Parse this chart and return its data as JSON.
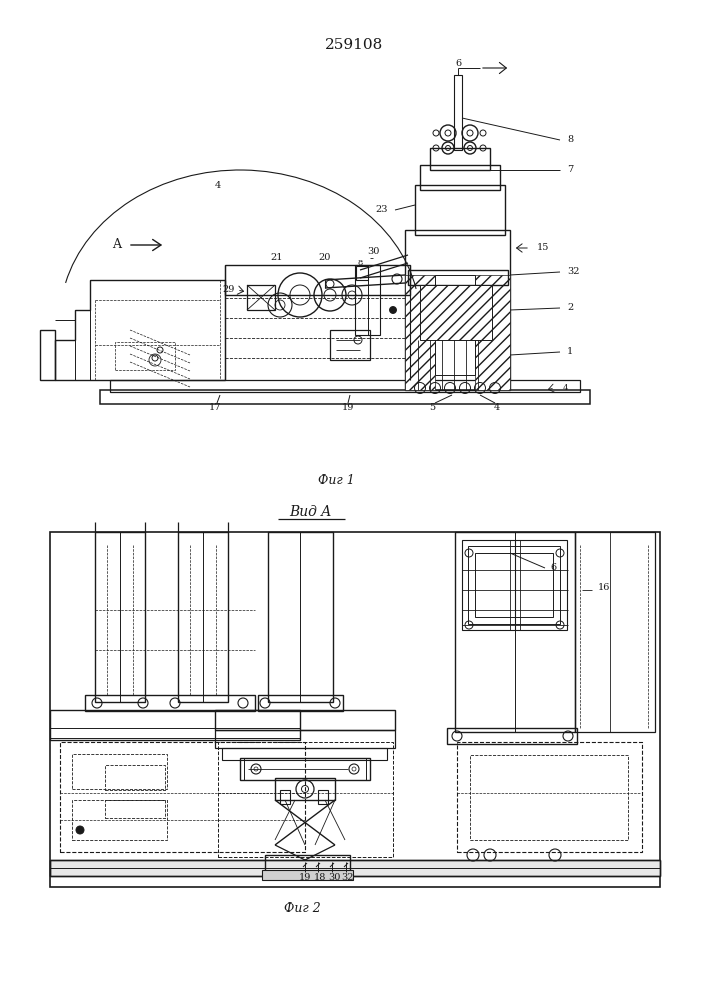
{
  "title": "259108",
  "fig1_label": "Фиг 1",
  "fig2_label": "Фиг 2",
  "vid_a_label": "Вид A",
  "background_color": "#ffffff",
  "line_color": "#1a1a1a",
  "lw": 0.7
}
